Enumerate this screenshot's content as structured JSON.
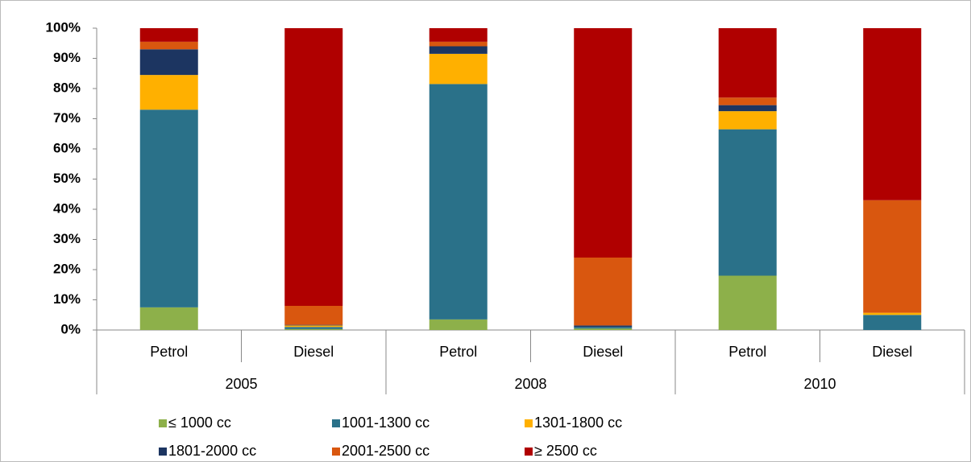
{
  "chart_data": {
    "type": "stacked_bar",
    "categories": [
      "Petrol",
      "Diesel",
      "Petrol",
      "Diesel",
      "Petrol",
      "Diesel"
    ],
    "groups": [
      "2005",
      "2008",
      "2010"
    ],
    "series": [
      {
        "name": "≤ 1000 cc",
        "color": "#8db04a",
        "values": [
          7.5,
          0.3,
          3.5,
          0.5,
          18,
          0
        ]
      },
      {
        "name": "1001-1300 cc",
        "color": "#2a7189",
        "values": [
          65.5,
          0.7,
          78,
          0.5,
          48.5,
          5
        ]
      },
      {
        "name": "1301-1800 cc",
        "color": "#ffb000",
        "values": [
          11.5,
          0.5,
          10,
          0,
          6,
          0.7
        ]
      },
      {
        "name": "1801-2000 cc",
        "color": "#1c3561",
        "values": [
          8.5,
          0.2,
          2.5,
          0.5,
          2,
          0
        ]
      },
      {
        "name": "2001-2500 cc",
        "color": "#d9570f",
        "values": [
          2.5,
          6.3,
          1.5,
          22.5,
          2.5,
          37.3
        ]
      },
      {
        "name": "≥ 2500 cc",
        "color": "#b00000",
        "values": [
          4.5,
          92,
          4.5,
          76,
          23,
          57
        ]
      }
    ],
    "ylim": [
      0,
      100
    ],
    "yticks": [
      {
        "value": 0,
        "label": "0%"
      },
      {
        "value": 10,
        "label": "10%"
      },
      {
        "value": 20,
        "label": "20%"
      },
      {
        "value": 30,
        "label": "30%"
      },
      {
        "value": 40,
        "label": "40%"
      },
      {
        "value": 50,
        "label": "50%"
      },
      {
        "value": 60,
        "label": "60%"
      },
      {
        "value": 70,
        "label": "70%"
      },
      {
        "value": 80,
        "label": "80%"
      },
      {
        "value": 90,
        "label": "90%"
      },
      {
        "value": 100,
        "label": "100%"
      }
    ]
  }
}
